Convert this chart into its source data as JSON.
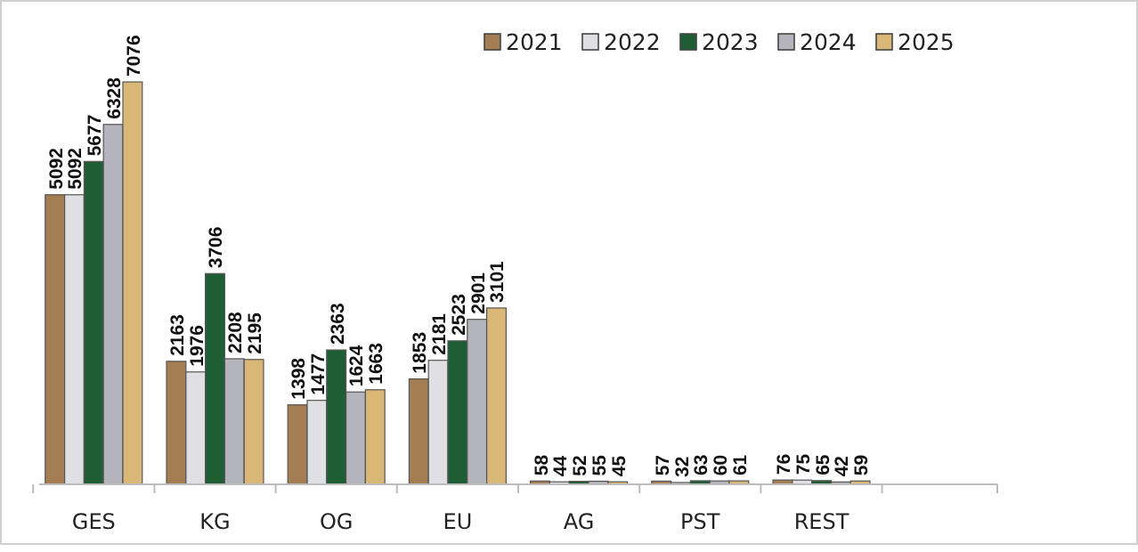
{
  "chart_data": {
    "type": "bar",
    "categories": [
      "GES",
      "KG",
      "OG",
      "EU",
      "AG",
      "PST",
      "REST",
      null
    ],
    "series": [
      {
        "name": "2021",
        "color": "#a57d52",
        "values": [
          5092,
          2163,
          1398,
          1853,
          58,
          57,
          76,
          null
        ]
      },
      {
        "name": "2022",
        "color": "#e0e0e4",
        "values": [
          5092,
          1976,
          1477,
          2181,
          44,
          32,
          75,
          null
        ]
      },
      {
        "name": "2023",
        "color": "#1f5e34",
        "values": [
          5677,
          3706,
          2363,
          2523,
          52,
          63,
          65,
          null
        ]
      },
      {
        "name": "2024",
        "color": "#b4b4bc",
        "values": [
          6328,
          2208,
          1624,
          2901,
          55,
          60,
          42,
          null
        ]
      },
      {
        "name": "2025",
        "color": "#d9b877",
        "values": [
          7076,
          2195,
          1663,
          3101,
          45,
          61,
          59,
          null
        ]
      }
    ],
    "data_labels": true,
    "legend": "top right",
    "grid": false
  }
}
